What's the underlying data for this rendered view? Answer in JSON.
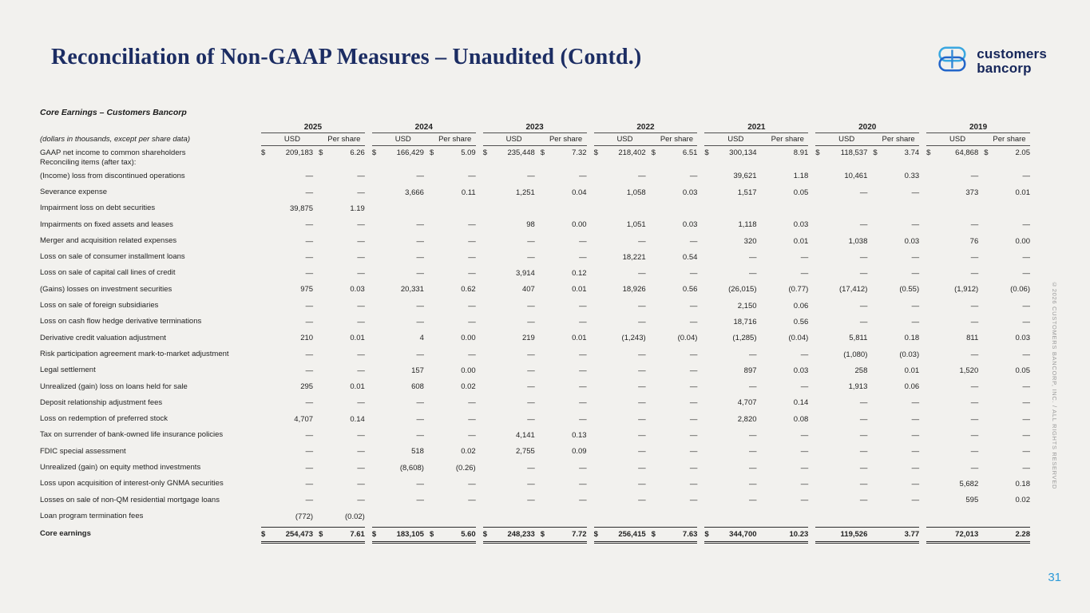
{
  "slide": {
    "title": "Reconciliation of Non-GAAP Measures – Unaudited (Contd.)",
    "page_number": "31",
    "copyright_vertical": "©2026 CUSTOMERS BANCORP, INC. / ALL RIGHTS RESERVED",
    "logo": {
      "line1": "customers",
      "line2": "bancorp"
    },
    "colors": {
      "background": "#f2f1ee",
      "title_navy": "#1c2d63",
      "logo_navy": "#16265a",
      "logo_blue_light": "#3aa7e0",
      "logo_blue_dark": "#2366c9",
      "page_number_blue": "#2d9ad8"
    }
  },
  "table": {
    "caption": "Core Earnings – Customers Bancorp",
    "subcaption": "(dollars in thousands, except per share data)",
    "years": [
      "2025",
      "2024",
      "2023",
      "2022",
      "2021",
      "2020",
      "2019"
    ],
    "subheaders": [
      "USD",
      "Per share"
    ],
    "rows": [
      {
        "label": "GAAP net income to common shareholders",
        "label2": "Reconciling items (after tax):",
        "cells": [
          [
            "$",
            "209,183",
            "$",
            "6.26"
          ],
          [
            "$",
            "166,429",
            "$",
            "5.09"
          ],
          [
            "$",
            "235,448",
            "$",
            "7.32"
          ],
          [
            "$",
            "218,402",
            "$",
            "6.51"
          ],
          [
            "$",
            "300,134",
            "",
            "8.91"
          ],
          [
            "$",
            "118,537",
            "$",
            "3.74"
          ],
          [
            "$",
            "64,868",
            "$",
            "2.05"
          ]
        ]
      },
      {
        "label": "(Income) loss from discontinued operations",
        "cells": [
          [
            "",
            "—",
            "",
            "—"
          ],
          [
            "",
            "—",
            "",
            "—"
          ],
          [
            "",
            "—",
            "",
            "—"
          ],
          [
            "",
            "—",
            "",
            "—"
          ],
          [
            "",
            "39,621",
            "",
            "1.18"
          ],
          [
            "",
            "10,461",
            "",
            "0.33"
          ],
          [
            "",
            "—",
            "",
            "—"
          ]
        ]
      },
      {
        "label": "Severance expense",
        "cells": [
          [
            "",
            "—",
            "",
            "—"
          ],
          [
            "",
            "3,666",
            "",
            "0.11"
          ],
          [
            "",
            "1,251",
            "",
            "0.04"
          ],
          [
            "",
            "1,058",
            "",
            "0.03"
          ],
          [
            "",
            "1,517",
            "",
            "0.05"
          ],
          [
            "",
            "—",
            "",
            "—"
          ],
          [
            "",
            "373",
            "",
            "0.01"
          ]
        ]
      },
      {
        "label": "Impairment loss on debt securities",
        "cells": [
          [
            "",
            "39,875",
            "",
            "1.19"
          ],
          [
            "",
            "",
            "",
            ""
          ],
          [
            "",
            "",
            "",
            ""
          ],
          [
            "",
            "",
            "",
            ""
          ],
          [
            "",
            "",
            "",
            ""
          ],
          [
            "",
            "",
            "",
            ""
          ],
          [
            "",
            "",
            "",
            ""
          ]
        ]
      },
      {
        "label": "Impairments on fixed assets and leases",
        "cells": [
          [
            "",
            "—",
            "",
            "—"
          ],
          [
            "",
            "—",
            "",
            "—"
          ],
          [
            "",
            "98",
            "",
            "0.00"
          ],
          [
            "",
            "1,051",
            "",
            "0.03"
          ],
          [
            "",
            "1,118",
            "",
            "0.03"
          ],
          [
            "",
            "—",
            "",
            "—"
          ],
          [
            "",
            "—",
            "",
            "—"
          ]
        ]
      },
      {
        "label": "Merger and acquisition related expenses",
        "cells": [
          [
            "",
            "—",
            "",
            "—"
          ],
          [
            "",
            "—",
            "",
            "—"
          ],
          [
            "",
            "—",
            "",
            "—"
          ],
          [
            "",
            "—",
            "",
            "—"
          ],
          [
            "",
            "320",
            "",
            "0.01"
          ],
          [
            "",
            "1,038",
            "",
            "0.03"
          ],
          [
            "",
            "76",
            "",
            "0.00"
          ]
        ]
      },
      {
        "label": "Loss on sale of consumer installment loans",
        "cells": [
          [
            "",
            "—",
            "",
            "—"
          ],
          [
            "",
            "—",
            "",
            "—"
          ],
          [
            "",
            "—",
            "",
            "—"
          ],
          [
            "",
            "18,221",
            "",
            "0.54"
          ],
          [
            "",
            "—",
            "",
            "—"
          ],
          [
            "",
            "—",
            "",
            "—"
          ],
          [
            "",
            "—",
            "",
            "—"
          ]
        ]
      },
      {
        "label": "Loss on sale of capital call lines of credit",
        "cells": [
          [
            "",
            "—",
            "",
            "—"
          ],
          [
            "",
            "—",
            "",
            "—"
          ],
          [
            "",
            "3,914",
            "",
            "0.12"
          ],
          [
            "",
            "—",
            "",
            "—"
          ],
          [
            "",
            "—",
            "",
            "—"
          ],
          [
            "",
            "—",
            "",
            "—"
          ],
          [
            "",
            "—",
            "",
            "—"
          ]
        ]
      },
      {
        "label": "(Gains) losses on investment securities",
        "cells": [
          [
            "",
            "975",
            "",
            "0.03"
          ],
          [
            "",
            "20,331",
            "",
            "0.62"
          ],
          [
            "",
            "407",
            "",
            "0.01"
          ],
          [
            "",
            "18,926",
            "",
            "0.56"
          ],
          [
            "",
            "(26,015)",
            "",
            "(0.77)"
          ],
          [
            "",
            "(17,412)",
            "",
            "(0.55)"
          ],
          [
            "",
            "(1,912)",
            "",
            "(0.06)"
          ]
        ]
      },
      {
        "label": "Loss on sale of foreign subsidiaries",
        "cells": [
          [
            "",
            "—",
            "",
            "—"
          ],
          [
            "",
            "—",
            "",
            "—"
          ],
          [
            "",
            "—",
            "",
            "—"
          ],
          [
            "",
            "—",
            "",
            "—"
          ],
          [
            "",
            "2,150",
            "",
            "0.06"
          ],
          [
            "",
            "—",
            "",
            "—"
          ],
          [
            "",
            "—",
            "",
            "—"
          ]
        ]
      },
      {
        "label": "Loss on cash flow hedge derivative terminations",
        "cells": [
          [
            "",
            "—",
            "",
            "—"
          ],
          [
            "",
            "—",
            "",
            "—"
          ],
          [
            "",
            "—",
            "",
            "—"
          ],
          [
            "",
            "—",
            "",
            "—"
          ],
          [
            "",
            "18,716",
            "",
            "0.56"
          ],
          [
            "",
            "—",
            "",
            "—"
          ],
          [
            "",
            "—",
            "",
            "—"
          ]
        ]
      },
      {
        "label": "Derivative credit valuation adjustment",
        "cells": [
          [
            "",
            "210",
            "",
            "0.01"
          ],
          [
            "",
            "4",
            "",
            "0.00"
          ],
          [
            "",
            "219",
            "",
            "0.01"
          ],
          [
            "",
            "(1,243)",
            "",
            "(0.04)"
          ],
          [
            "",
            "(1,285)",
            "",
            "(0.04)"
          ],
          [
            "",
            "5,811",
            "",
            "0.18"
          ],
          [
            "",
            "811",
            "",
            "0.03"
          ]
        ]
      },
      {
        "label": "Risk participation agreement mark-to-market adjustment",
        "cells": [
          [
            "",
            "—",
            "",
            "—"
          ],
          [
            "",
            "—",
            "",
            "—"
          ],
          [
            "",
            "—",
            "",
            "—"
          ],
          [
            "",
            "—",
            "",
            "—"
          ],
          [
            "",
            "—",
            "",
            "—"
          ],
          [
            "",
            "(1,080)",
            "",
            "(0.03)"
          ],
          [
            "",
            "—",
            "",
            "—"
          ]
        ]
      },
      {
        "label": "Legal settlement",
        "cells": [
          [
            "",
            "—",
            "",
            "—"
          ],
          [
            "",
            "157",
            "",
            "0.00"
          ],
          [
            "",
            "—",
            "",
            "—"
          ],
          [
            "",
            "—",
            "",
            "—"
          ],
          [
            "",
            "897",
            "",
            "0.03"
          ],
          [
            "",
            "258",
            "",
            "0.01"
          ],
          [
            "",
            "1,520",
            "",
            "0.05"
          ]
        ]
      },
      {
        "label": "Unrealized (gain) loss on loans held for sale",
        "cells": [
          [
            "",
            "295",
            "",
            "0.01"
          ],
          [
            "",
            "608",
            "",
            "0.02"
          ],
          [
            "",
            "—",
            "",
            "—"
          ],
          [
            "",
            "—",
            "",
            "—"
          ],
          [
            "",
            "—",
            "",
            "—"
          ],
          [
            "",
            "1,913",
            "",
            "0.06"
          ],
          [
            "",
            "—",
            "",
            "—"
          ]
        ]
      },
      {
        "label": "Deposit relationship adjustment fees",
        "cells": [
          [
            "",
            "—",
            "",
            "—"
          ],
          [
            "",
            "—",
            "",
            "—"
          ],
          [
            "",
            "—",
            "",
            "—"
          ],
          [
            "",
            "—",
            "",
            "—"
          ],
          [
            "",
            "4,707",
            "",
            "0.14"
          ],
          [
            "",
            "—",
            "",
            "—"
          ],
          [
            "",
            "—",
            "",
            "—"
          ]
        ]
      },
      {
        "label": "Loss on redemption of preferred stock",
        "cells": [
          [
            "",
            "4,707",
            "",
            "0.14"
          ],
          [
            "",
            "—",
            "",
            "—"
          ],
          [
            "",
            "—",
            "",
            "—"
          ],
          [
            "",
            "—",
            "",
            "—"
          ],
          [
            "",
            "2,820",
            "",
            "0.08"
          ],
          [
            "",
            "—",
            "",
            "—"
          ],
          [
            "",
            "—",
            "",
            "—"
          ]
        ]
      },
      {
        "label": "Tax on surrender of bank-owned life insurance policies",
        "cells": [
          [
            "",
            "—",
            "",
            "—"
          ],
          [
            "",
            "—",
            "",
            "—"
          ],
          [
            "",
            "4,141",
            "",
            "0.13"
          ],
          [
            "",
            "—",
            "",
            "—"
          ],
          [
            "",
            "—",
            "",
            "—"
          ],
          [
            "",
            "—",
            "",
            "—"
          ],
          [
            "",
            "—",
            "",
            "—"
          ]
        ]
      },
      {
        "label": "FDIC special assessment",
        "cells": [
          [
            "",
            "—",
            "",
            "—"
          ],
          [
            "",
            "518",
            "",
            "0.02"
          ],
          [
            "",
            "2,755",
            "",
            "0.09"
          ],
          [
            "",
            "—",
            "",
            "—"
          ],
          [
            "",
            "—",
            "",
            "—"
          ],
          [
            "",
            "—",
            "",
            "—"
          ],
          [
            "",
            "—",
            "",
            "—"
          ]
        ]
      },
      {
        "label": "Unrealized (gain) on equity method investments",
        "cells": [
          [
            "",
            "—",
            "",
            "—"
          ],
          [
            "",
            "(8,608)",
            "",
            "(0.26)"
          ],
          [
            "",
            "—",
            "",
            "—"
          ],
          [
            "",
            "—",
            "",
            "—"
          ],
          [
            "",
            "—",
            "",
            "—"
          ],
          [
            "",
            "—",
            "",
            "—"
          ],
          [
            "",
            "—",
            "",
            "—"
          ]
        ]
      },
      {
        "label": "Loss upon acquisition of interest-only GNMA securities",
        "cells": [
          [
            "",
            "—",
            "",
            "—"
          ],
          [
            "",
            "—",
            "",
            "—"
          ],
          [
            "",
            "—",
            "",
            "—"
          ],
          [
            "",
            "—",
            "",
            "—"
          ],
          [
            "",
            "—",
            "",
            "—"
          ],
          [
            "",
            "—",
            "",
            "—"
          ],
          [
            "",
            "5,682",
            "",
            "0.18"
          ]
        ]
      },
      {
        "label": "Losses on sale of non-QM residential mortgage loans",
        "cells": [
          [
            "",
            "—",
            "",
            "—"
          ],
          [
            "",
            "—",
            "",
            "—"
          ],
          [
            "",
            "—",
            "",
            "—"
          ],
          [
            "",
            "—",
            "",
            "—"
          ],
          [
            "",
            "—",
            "",
            "—"
          ],
          [
            "",
            "—",
            "",
            "—"
          ],
          [
            "",
            "595",
            "",
            "0.02"
          ]
        ]
      },
      {
        "label": "Loan program termination fees",
        "cells": [
          [
            "",
            "(772)",
            "",
            "(0.02)"
          ],
          [
            "",
            "",
            "",
            ""
          ],
          [
            "",
            "",
            "",
            ""
          ],
          [
            "",
            "",
            "",
            ""
          ],
          [
            "",
            "",
            "",
            ""
          ],
          [
            "",
            "",
            "",
            ""
          ],
          [
            "",
            "",
            "",
            ""
          ]
        ]
      }
    ],
    "total_row": {
      "label": "Core earnings",
      "cells": [
        [
          "$",
          "254,473",
          "$",
          "7.61"
        ],
        [
          "$",
          "183,105",
          "$",
          "5.60"
        ],
        [
          "$",
          "248,233",
          "$",
          "7.72"
        ],
        [
          "$",
          "256,415",
          "$",
          "7.63"
        ],
        [
          "$",
          "344,700",
          "",
          "10.23"
        ],
        [
          "",
          "119,526",
          "",
          "3.77"
        ],
        [
          "",
          "72,013",
          "",
          "2.28"
        ]
      ]
    }
  }
}
